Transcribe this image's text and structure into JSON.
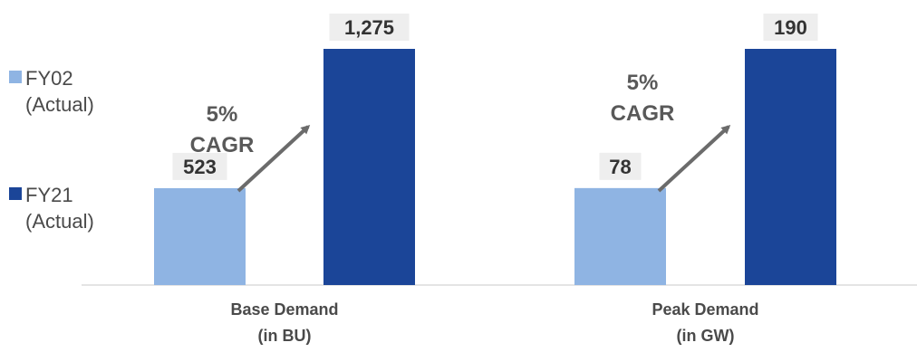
{
  "chart_data": {
    "type": "bar",
    "series": [
      {
        "name_line1": "FY02",
        "name_line2": "(Actual)",
        "color": "#8fb4e3"
      },
      {
        "name_line1": "FY21",
        "name_line2": "(Actual)",
        "color": "#1b4598"
      }
    ],
    "groups": [
      {
        "label_line1": "Base Demand",
        "label_line2": "(in BU)",
        "values": [
          523,
          1275
        ],
        "value_labels": [
          "523",
          "1,275"
        ],
        "cagr_line1": "5%",
        "cagr_line2": "CAGR"
      },
      {
        "label_line1": "Peak Demand",
        "label_line2": "(in GW)",
        "values": [
          78,
          190
        ],
        "value_labels": [
          "78",
          "190"
        ],
        "cagr_line1": "5%",
        "cagr_line2": "CAGR"
      }
    ],
    "label_box_color": "#eeeeee",
    "arrow_color": "#6b6b6b",
    "axis_color": "#c9c9c9"
  }
}
